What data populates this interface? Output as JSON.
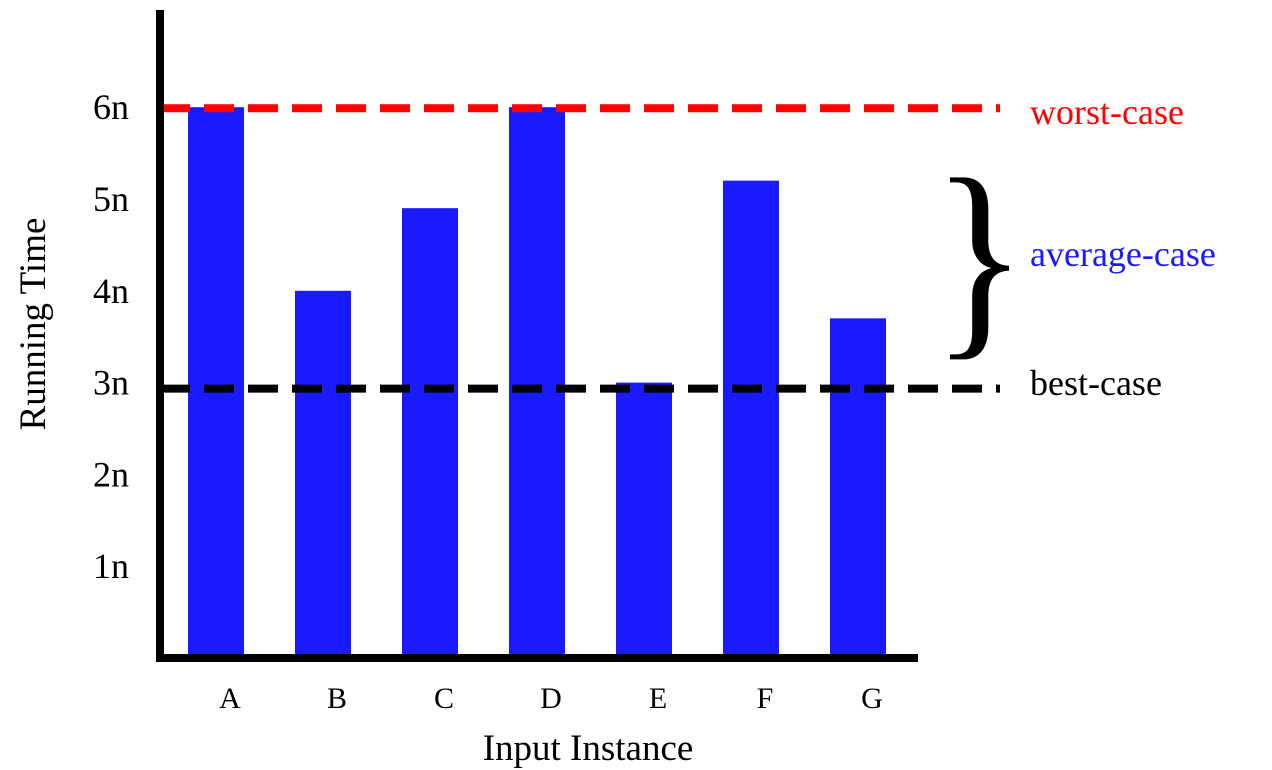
{
  "chart_data": {
    "type": "bar",
    "title": "",
    "xlabel": "Input Instance",
    "ylabel": "Running Time",
    "categories": [
      "A",
      "B",
      "C",
      "D",
      "E",
      "F",
      "G"
    ],
    "values": [
      6.0,
      4.0,
      4.9,
      6.0,
      3.0,
      5.2,
      3.7
    ],
    "ylim": [
      0,
      7
    ],
    "y_ticks": [
      {
        "value": 1,
        "label": "1n"
      },
      {
        "value": 2,
        "label": "2n"
      },
      {
        "value": 3,
        "label": "3n"
      },
      {
        "value": 4,
        "label": "4n"
      },
      {
        "value": 5,
        "label": "5n"
      },
      {
        "value": 6,
        "label": "6n"
      }
    ],
    "grid": false,
    "bar_color": "#1a1aff",
    "reference_lines": {
      "worst": {
        "label": "worst-case",
        "value": 6,
        "color": "#ff0000"
      },
      "best": {
        "label": "best-case",
        "value": 3,
        "color": "#000000"
      }
    },
    "average_annotation": {
      "label": "average-case",
      "color": "#1a1aff",
      "brace": "}"
    }
  }
}
